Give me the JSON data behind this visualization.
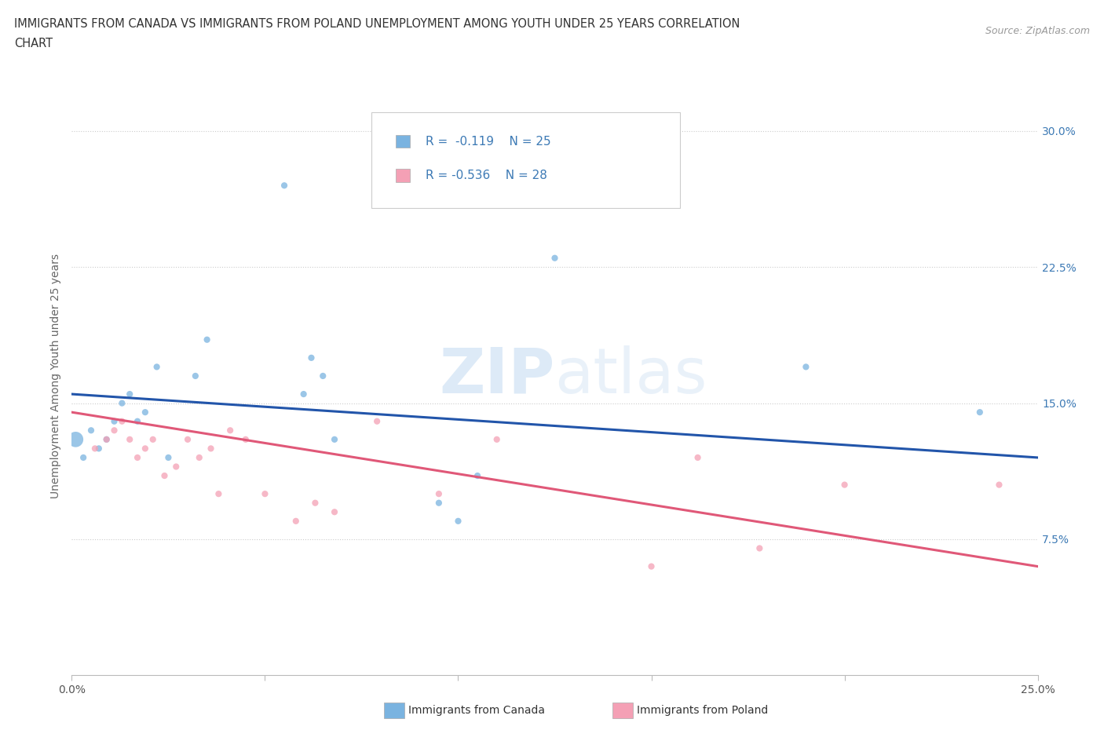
{
  "title_line1": "IMMIGRANTS FROM CANADA VS IMMIGRANTS FROM POLAND UNEMPLOYMENT AMONG YOUTH UNDER 25 YEARS CORRELATION",
  "title_line2": "CHART",
  "source": "Source: ZipAtlas.com",
  "ylabel": "Unemployment Among Youth under 25 years",
  "xlim": [
    0.0,
    0.25
  ],
  "ylim": [
    0.0,
    0.33
  ],
  "canada_color": "#7ab3e0",
  "poland_color": "#f4a0b5",
  "canada_line_color": "#2255aa",
  "poland_line_color": "#e05878",
  "canada_color_big": "#9bbfe8",
  "watermark_color": "#d0dff0",
  "background_color": "#ffffff",
  "grid_color": "#cccccc",
  "tick_label_color": "#3d7ab5",
  "canada_x": [
    0.003,
    0.005,
    0.007,
    0.009,
    0.011,
    0.013,
    0.001,
    0.015,
    0.017,
    0.019,
    0.022,
    0.025,
    0.032,
    0.035,
    0.055,
    0.06,
    0.062,
    0.065,
    0.068,
    0.095,
    0.1,
    0.105,
    0.19,
    0.235,
    0.125
  ],
  "canada_y": [
    0.12,
    0.135,
    0.125,
    0.13,
    0.14,
    0.15,
    0.13,
    0.155,
    0.14,
    0.145,
    0.17,
    0.12,
    0.165,
    0.185,
    0.27,
    0.155,
    0.175,
    0.165,
    0.13,
    0.095,
    0.085,
    0.11,
    0.17,
    0.145,
    0.23
  ],
  "canada_sizes": [
    35,
    35,
    35,
    35,
    35,
    35,
    200,
    35,
    35,
    35,
    35,
    35,
    35,
    35,
    35,
    35,
    35,
    35,
    35,
    35,
    35,
    35,
    35,
    35,
    35
  ],
  "poland_x": [
    0.006,
    0.009,
    0.011,
    0.013,
    0.015,
    0.017,
    0.019,
    0.021,
    0.024,
    0.027,
    0.03,
    0.033,
    0.036,
    0.038,
    0.041,
    0.045,
    0.05,
    0.058,
    0.063,
    0.068,
    0.079,
    0.095,
    0.11,
    0.15,
    0.162,
    0.178,
    0.2,
    0.24
  ],
  "poland_y": [
    0.125,
    0.13,
    0.135,
    0.14,
    0.13,
    0.12,
    0.125,
    0.13,
    0.11,
    0.115,
    0.13,
    0.12,
    0.125,
    0.1,
    0.135,
    0.13,
    0.1,
    0.085,
    0.095,
    0.09,
    0.14,
    0.1,
    0.13,
    0.06,
    0.12,
    0.07,
    0.105,
    0.105
  ],
  "poland_sizes": [
    35,
    35,
    35,
    35,
    35,
    35,
    35,
    35,
    35,
    35,
    35,
    35,
    35,
    35,
    35,
    35,
    35,
    35,
    35,
    35,
    35,
    35,
    35,
    35,
    35,
    35,
    35,
    35
  ],
  "canada_trend_x0": 0.0,
  "canada_trend_y0": 0.155,
  "canada_trend_x1": 0.25,
  "canada_trend_y1": 0.12,
  "poland_trend_x0": 0.0,
  "poland_trend_y0": 0.145,
  "poland_trend_x1": 0.25,
  "poland_trend_y1": 0.06
}
